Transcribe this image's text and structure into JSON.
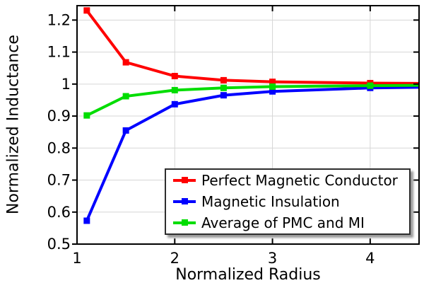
{
  "chart_data": {
    "type": "line",
    "title": "",
    "xlabel": "Normalized Radius",
    "ylabel": "Normalized Inductance",
    "xlim": [
      1,
      4.5
    ],
    "ylim": [
      0.5,
      1.245
    ],
    "grid": true,
    "legend_position": "inside-bottom-right",
    "marker": "square",
    "marker_on_last_point": false,
    "x_ticks": [
      {
        "v": 1,
        "label": "1"
      },
      {
        "v": 2,
        "label": "2"
      },
      {
        "v": 3,
        "label": "3"
      },
      {
        "v": 4,
        "label": "4"
      }
    ],
    "y_ticks": [
      {
        "v": 0.5,
        "label": "0.5"
      },
      {
        "v": 0.6,
        "label": "0.6"
      },
      {
        "v": 0.7,
        "label": "0.7"
      },
      {
        "v": 0.8,
        "label": "0.8"
      },
      {
        "v": 0.9,
        "label": "0.9"
      },
      {
        "v": 1.0,
        "label": "1"
      },
      {
        "v": 1.1,
        "label": "1.1"
      },
      {
        "v": 1.2,
        "label": "1.2"
      }
    ],
    "x": [
      1.1,
      1.5,
      2,
      2.5,
      3,
      4,
      4.5
    ],
    "series": [
      {
        "name": "Perfect Magnetic Conductor",
        "color": "#ff0000",
        "values": [
          1.23,
          1.068,
          1.025,
          1.012,
          1.007,
          1.003,
          1.002
        ]
      },
      {
        "name": "Magnetic Insulation",
        "color": "#0000ff",
        "values": [
          0.573,
          0.855,
          0.937,
          0.965,
          0.977,
          0.988,
          0.99
        ]
      },
      {
        "name": "Average of PMC and MI",
        "color": "#00dd00",
        "values": [
          0.902,
          0.962,
          0.981,
          0.988,
          0.992,
          0.995,
          0.996
        ]
      }
    ],
    "colors": {
      "background": "#ffffff",
      "axis": "#000000",
      "grid": "#d6d6d6",
      "tick_label": "#000000",
      "legend_border": "#2e2e2e",
      "legend_shadow": "#999999"
    }
  }
}
